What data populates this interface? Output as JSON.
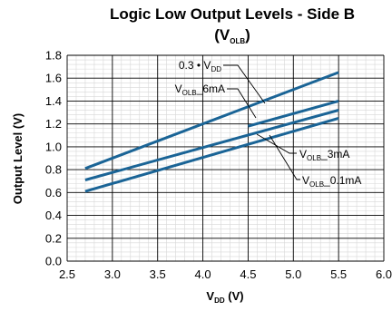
{
  "chart_data": {
    "type": "line",
    "title_line1": "Logic Low Output Levels - Side B",
    "title_line2": {
      "pre": "(V",
      "sub": "OLB",
      "post": ")"
    },
    "xlabel": {
      "pre": "V",
      "sub": "DD",
      "post": " (V)"
    },
    "ylabel": "Output Level (V)",
    "xlim": [
      2.5,
      6.0
    ],
    "ylim": [
      0.0,
      1.8
    ],
    "x_ticks": [
      "2.5",
      "3.0",
      "3.5",
      "4.0",
      "4.5",
      "5.0",
      "5.5",
      "6.0"
    ],
    "y_ticks": [
      "0.0",
      "0.2",
      "0.4",
      "0.6",
      "0.8",
      "1.0",
      "1.2",
      "1.4",
      "1.6",
      "1.8"
    ],
    "grid": true,
    "series": [
      {
        "name": "0.3 • VDD",
        "x": [
          2.7,
          5.5
        ],
        "y": [
          0.81,
          1.65
        ]
      },
      {
        "name": "VOLB_6mA",
        "x": [
          4.5,
          5.5
        ],
        "y": [
          1.18,
          1.4
        ]
      },
      {
        "name": "VOLB_3mA",
        "x": [
          2.7,
          5.5
        ],
        "y": [
          0.71,
          1.32
        ]
      },
      {
        "name": "VOLB_0.1mA",
        "x": [
          2.7,
          5.5
        ],
        "y": [
          0.61,
          1.25
        ]
      }
    ],
    "annotations": [
      {
        "pre": "0.3 • V",
        "sub": "DD",
        "post": ""
      },
      {
        "pre": "V",
        "sub": "OLB",
        "post": "_6mA"
      },
      {
        "pre": "V",
        "sub": "OLB",
        "post": "_3mA"
      },
      {
        "pre": "V",
        "sub": "OLB",
        "post": "_0.1mA"
      }
    ],
    "colors": {
      "series": "#1a6496",
      "grid": "#d7d7d7",
      "frame": "#000000"
    }
  }
}
